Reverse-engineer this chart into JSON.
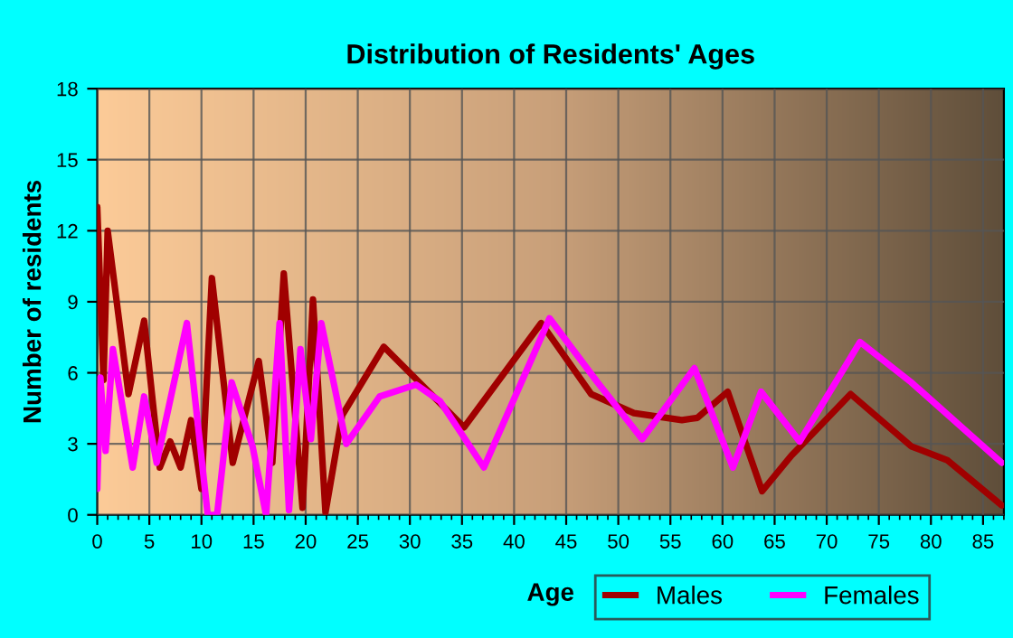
{
  "chart_data": {
    "type": "line",
    "title": "Distribution of Residents' Ages",
    "xlabel": "Age",
    "ylabel": "Number of residents",
    "xlim": [
      0,
      87
    ],
    "xticks": [
      0,
      5,
      10,
      15,
      20,
      25,
      30,
      35,
      40,
      45,
      50,
      55,
      60,
      65,
      70,
      75,
      80,
      85
    ],
    "ylim": [
      0,
      18
    ],
    "yticks": [
      0,
      3,
      6,
      9,
      12,
      15,
      18
    ],
    "grid": true,
    "legend": "bottom right",
    "marker": "none",
    "line_style": "solid",
    "series": [
      {
        "name": "Males",
        "color": "#a00000",
        "x": [
          0,
          0.6,
          1.0,
          3,
          4.5,
          6,
          7,
          8,
          9,
          10,
          11,
          13,
          15.5,
          16.8,
          17.9,
          19.7,
          20.7,
          21.9,
          23.5,
          27.5,
          35.2,
          42.6,
          47.4,
          51.5,
          56.1,
          57.6,
          60.5,
          63.8,
          66.6,
          67.7,
          72.3,
          78.1,
          81.6,
          86.8
        ],
        "values": [
          13,
          5.7,
          12,
          5.1,
          8.2,
          2.0,
          3.1,
          2.0,
          4.0,
          1.1,
          10.0,
          2.2,
          6.5,
          2.2,
          10.2,
          0.3,
          9.1,
          0.1,
          4.2,
          7.1,
          3.7,
          8.1,
          5.1,
          4.3,
          4.0,
          4.1,
          5.2,
          1.0,
          2.5,
          3.0,
          5.1,
          2.9,
          2.3,
          0.4
        ]
      },
      {
        "name": "Females",
        "color": "#ff00ff",
        "x": [
          0,
          0.3,
          0.8,
          1.5,
          3.4,
          4.5,
          5.7,
          8.6,
          10.6,
          11.5,
          12.9,
          14.9,
          16.2,
          17.5,
          18.4,
          19.5,
          20.5,
          21.5,
          23.9,
          27.1,
          30.6,
          32.9,
          37.1,
          43.4,
          48.0,
          52.3,
          57.3,
          61.0,
          63.7,
          67.4,
          73.2,
          78.1,
          86.8
        ],
        "values": [
          1.1,
          5.8,
          2.7,
          7.0,
          2.0,
          5.0,
          2.2,
          8.1,
          0,
          0,
          5.6,
          2.9,
          0,
          8.1,
          0.2,
          7.0,
          3.2,
          8.1,
          3.0,
          5.0,
          5.5,
          4.8,
          2.0,
          8.3,
          5.6,
          3.2,
          6.2,
          2.0,
          5.2,
          3.1,
          7.3,
          5.6,
          2.2
        ]
      }
    ]
  }
}
